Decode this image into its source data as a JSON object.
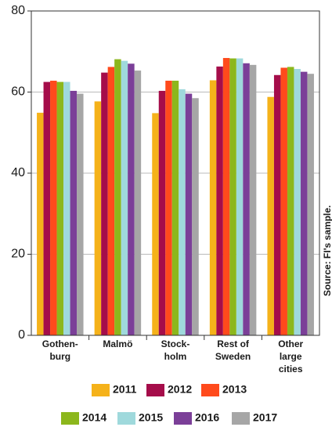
{
  "chart_data": {
    "type": "bar",
    "source": "Source: FI's sample.",
    "categories": [
      "Gothen-\nburg",
      "Malmö",
      "Stock-\nholm",
      "Rest of\nSweden",
      "Other\nlarge\ncities"
    ],
    "series": [
      {
        "name": "2011",
        "color": "#f5b21a",
        "values": [
          54.9,
          57.7,
          54.8,
          62.9,
          58.8
        ]
      },
      {
        "name": "2012",
        "color": "#a50d4a",
        "values": [
          62.5,
          64.8,
          60.3,
          66.3,
          64.2
        ]
      },
      {
        "name": "2013",
        "color": "#ff4a1c",
        "values": [
          62.8,
          66.2,
          62.8,
          68.4,
          66.0
        ]
      },
      {
        "name": "2014",
        "color": "#8cb71c",
        "values": [
          62.5,
          68.1,
          62.8,
          68.3,
          66.2
        ]
      },
      {
        "name": "2015",
        "color": "#9fd9dc",
        "values": [
          62.5,
          67.7,
          60.7,
          68.3,
          65.7
        ]
      },
      {
        "name": "2016",
        "color": "#7b3f98",
        "values": [
          60.3,
          67.0,
          59.6,
          67.1,
          65.0
        ]
      },
      {
        "name": "2017",
        "color": "#a6a6a6",
        "values": [
          59.6,
          65.3,
          58.5,
          66.7,
          64.5
        ]
      }
    ],
    "ylim": [
      0,
      80
    ],
    "yticks": [
      0,
      20,
      40,
      60,
      80
    ],
    "grid": true
  }
}
